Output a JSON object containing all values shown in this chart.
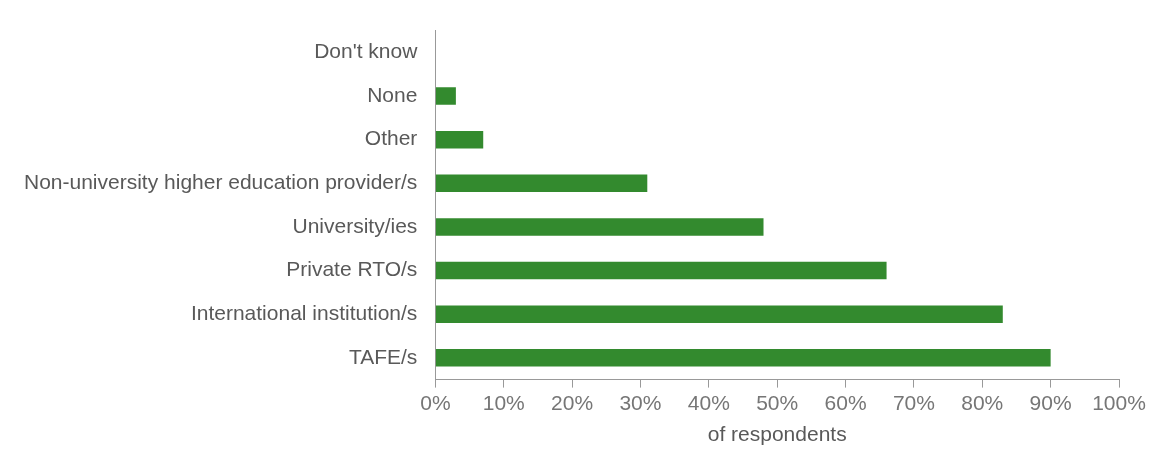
{
  "chart_data": {
    "type": "bar",
    "orientation": "horizontal",
    "xlabel": "of respondents",
    "categories": [
      "Don't know",
      "None",
      "Other",
      "Non-university higher education provider/s",
      "University/ies",
      "Private RTO/s",
      "International institution/s",
      "TAFE/s"
    ],
    "values": [
      0,
      3,
      7,
      31,
      48,
      66,
      83,
      90
    ],
    "color": "#338a2e",
    "xlim": [
      0,
      100
    ],
    "xticks": [
      {
        "value": 0,
        "label": "0%"
      },
      {
        "value": 10,
        "label": "10%"
      },
      {
        "value": 20,
        "label": "20%"
      },
      {
        "value": 30,
        "label": "30%"
      },
      {
        "value": 40,
        "label": "40%"
      },
      {
        "value": 50,
        "label": "50%"
      },
      {
        "value": 60,
        "label": "60%"
      },
      {
        "value": 70,
        "label": "70%"
      },
      {
        "value": 80,
        "label": "80%"
      },
      {
        "value": 90,
        "label": "90%"
      },
      {
        "value": 100,
        "label": "100%"
      }
    ],
    "grid": false,
    "legend": false
  }
}
